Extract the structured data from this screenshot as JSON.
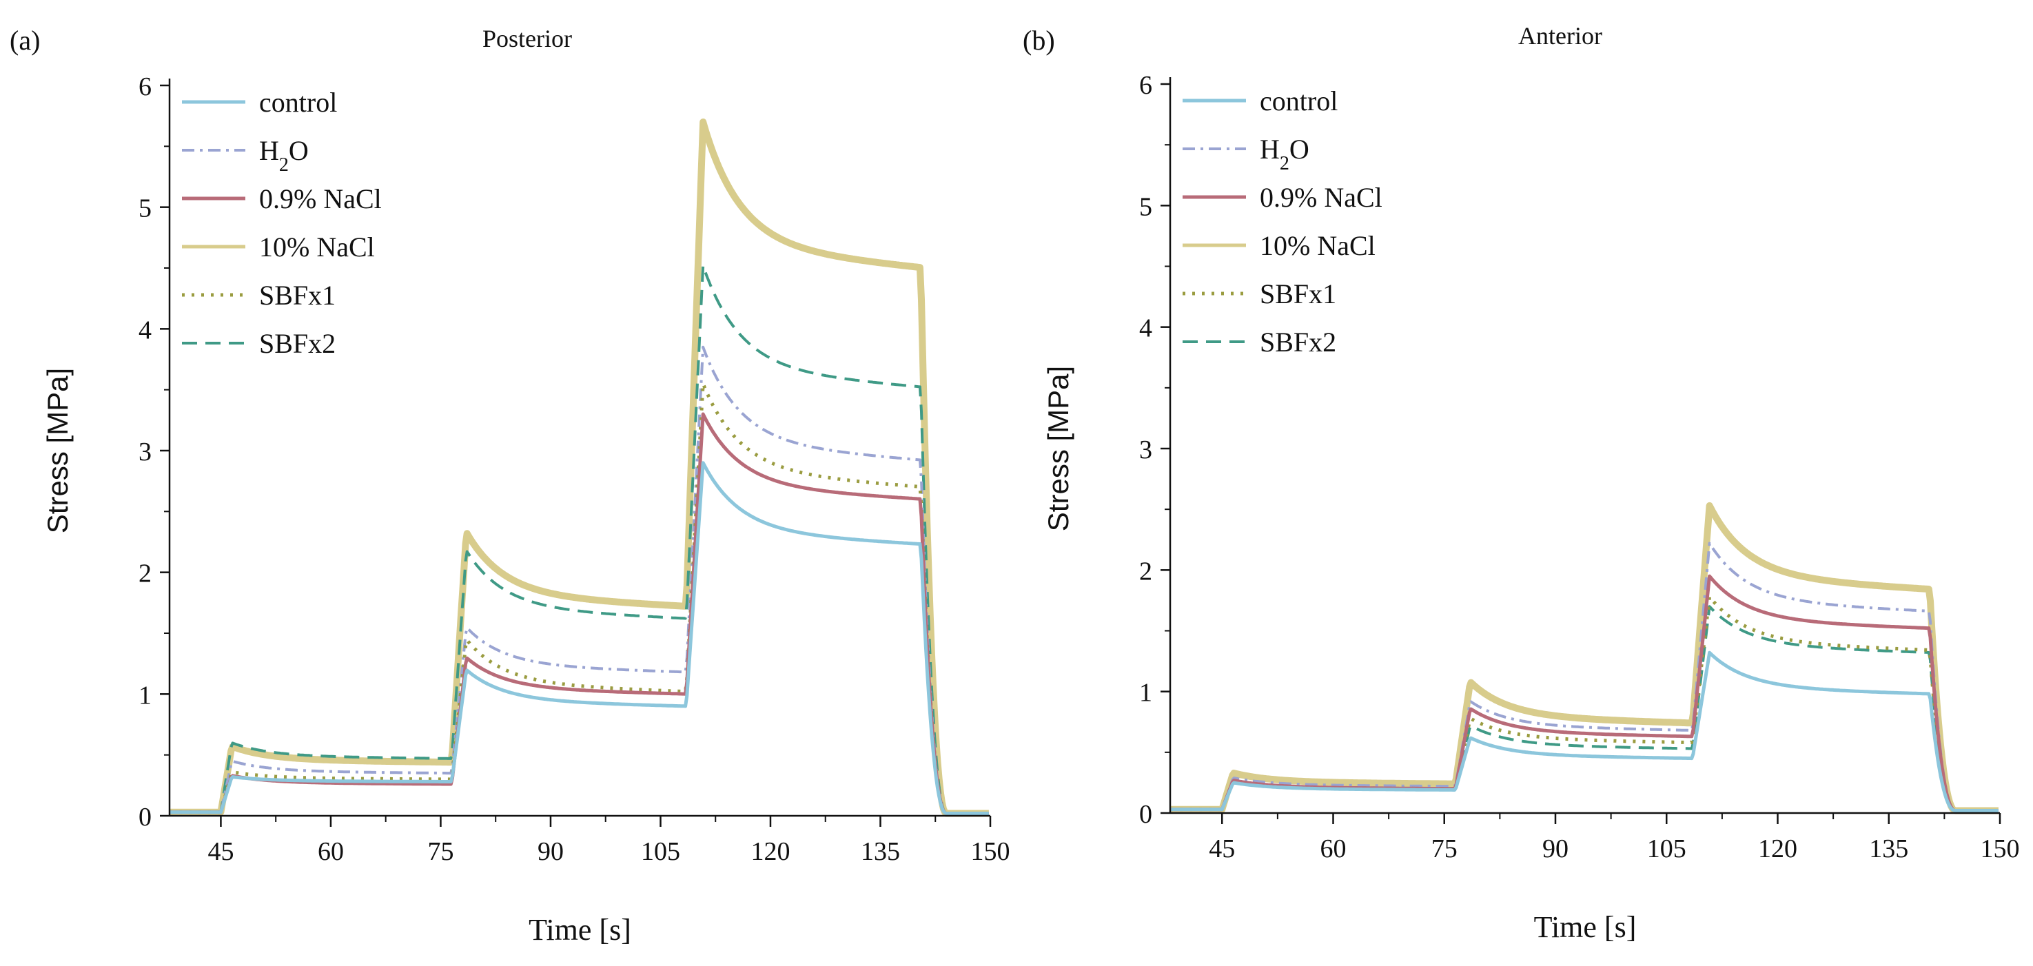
{
  "panels": [
    {
      "panel_label": "(a)",
      "chart_data": {
        "type": "line",
        "title": "Posterior",
        "xlabel": "Time [s]",
        "ylabel": "Stress [MPa]",
        "xlim": [
          38,
          150
        ],
        "ylim": [
          0,
          6
        ],
        "xticks": [
          "45",
          "60",
          "75",
          "90",
          "105",
          "120",
          "135",
          "150"
        ],
        "xtick_values": [
          45,
          60,
          75,
          90,
          105,
          120,
          135,
          150
        ],
        "yticks": [
          "0",
          "1",
          "2",
          "3",
          "4",
          "5",
          "6"
        ],
        "ytick_values": [
          0,
          1,
          2,
          3,
          4,
          5,
          6
        ],
        "legend_position": "top-left",
        "series": [
          {
            "name_html": "control",
            "base": [
              0.28,
              0.9,
              2.23
            ],
            "peak": [
              0.32,
              1.2,
              2.9
            ],
            "color": "#8cc6dc",
            "style": "solid"
          },
          {
            "name_html": "H<tspan baseline-shift=\"sub\" font-size=\"70%\">2</tspan>O",
            "base": [
              0.35,
              1.18,
              2.92
            ],
            "peak": [
              0.45,
              1.55,
              3.85
            ],
            "color": "#9aa4d2",
            "style": "dashdot"
          },
          {
            "name_html": "0.9% NaCl",
            "base": [
              0.26,
              1.0,
              2.6
            ],
            "peak": [
              0.33,
              1.3,
              3.3
            ],
            "color": "#b86b78",
            "style": "solid"
          },
          {
            "name_html": "10% NaCl",
            "base": [
              0.44,
              1.72,
              4.5
            ],
            "peak": [
              0.57,
              2.33,
              5.7
            ],
            "color": "#d8cc8c",
            "style": "thick"
          },
          {
            "name_html": "SBFx1",
            "base": [
              0.3,
              1.02,
              2.7
            ],
            "peak": [
              0.36,
              1.45,
              3.55
            ],
            "color": "#9a9c40",
            "style": "dot"
          },
          {
            "name_html": "SBFx2",
            "base": [
              0.47,
              1.62,
              3.52
            ],
            "peak": [
              0.6,
              2.18,
              4.52
            ],
            "color": "#3f9a86",
            "style": "dash"
          }
        ]
      }
    },
    {
      "panel_label": "(b)",
      "chart_data": {
        "type": "line",
        "title": "Anterior",
        "xlabel": "Time [s]",
        "ylabel": "Stress [MPa]",
        "xlim": [
          38,
          150
        ],
        "ylim": [
          0,
          6
        ],
        "xticks": [
          "45",
          "60",
          "75",
          "90",
          "105",
          "120",
          "135",
          "150"
        ],
        "xtick_values": [
          45,
          60,
          75,
          90,
          105,
          120,
          135,
          150
        ],
        "yticks": [
          "0",
          "1",
          "2",
          "3",
          "4",
          "5",
          "6"
        ],
        "ytick_values": [
          0,
          1,
          2,
          3,
          4,
          5,
          6
        ],
        "legend_position": "top-left",
        "series": [
          {
            "name_html": "control",
            "base": [
              0.19,
              0.45,
              0.98
            ],
            "peak": [
              0.25,
              0.62,
              1.32
            ],
            "color": "#8cc6dc",
            "style": "solid"
          },
          {
            "name_html": "H<tspan baseline-shift=\"sub\" font-size=\"70%\">2</tspan>O",
            "base": [
              0.22,
              0.68,
              1.66
            ],
            "peak": [
              0.29,
              0.92,
              2.22
            ],
            "color": "#9aa4d2",
            "style": "dashdot"
          },
          {
            "name_html": "0.9% NaCl",
            "base": [
              0.2,
              0.63,
              1.52
            ],
            "peak": [
              0.27,
              0.86,
              1.95
            ],
            "color": "#b86b78",
            "style": "solid"
          },
          {
            "name_html": "10% NaCl",
            "base": [
              0.24,
              0.74,
              1.84
            ],
            "peak": [
              0.33,
              1.08,
              2.53
            ],
            "color": "#d8cc8c",
            "style": "thick"
          },
          {
            "name_html": "SBFx1",
            "base": [
              0.2,
              0.58,
              1.34
            ],
            "peak": [
              0.26,
              0.78,
              1.78
            ],
            "color": "#9a9c40",
            "style": "dot"
          },
          {
            "name_html": "SBFx2",
            "base": [
              0.19,
              0.53,
              1.32
            ],
            "peak": [
              0.25,
              0.72,
              1.7
            ],
            "color": "#3f9a86",
            "style": "dash"
          }
        ]
      }
    }
  ]
}
